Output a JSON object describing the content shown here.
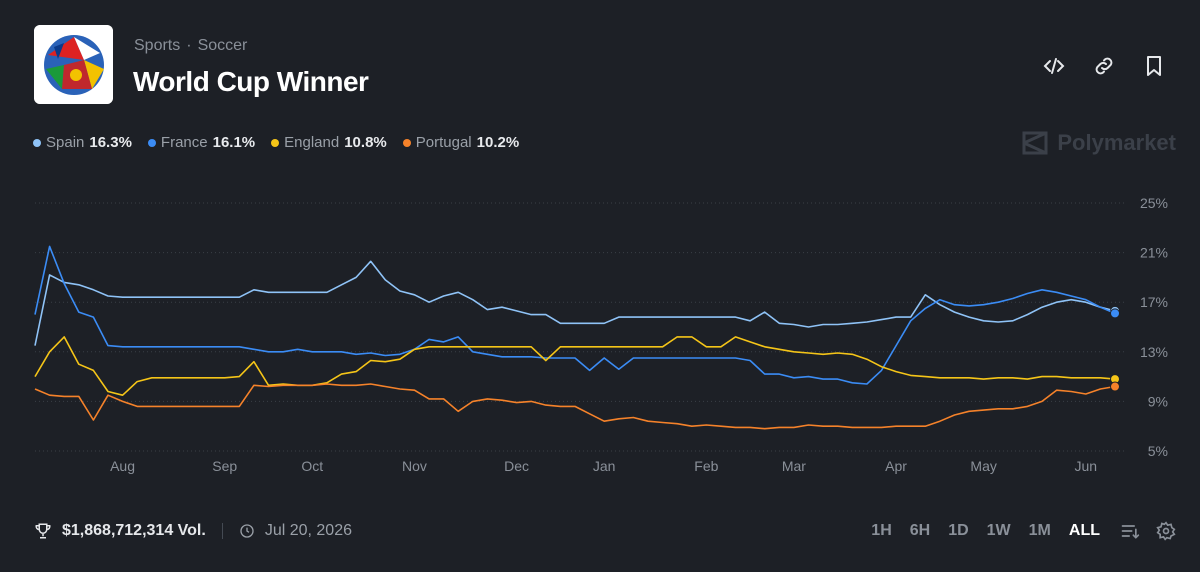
{
  "header": {
    "category": "Sports",
    "separator": "·",
    "subcategory": "Soccer",
    "title": "World Cup Winner",
    "brand": "Polymarket"
  },
  "chart_data": {
    "type": "line",
    "categories": [
      null,
      null,
      null,
      null,
      null,
      null,
      "Aug",
      null,
      null,
      null,
      null,
      null,
      null,
      "Sep",
      null,
      null,
      null,
      null,
      null,
      "Oct",
      null,
      null,
      null,
      null,
      null,
      null,
      "Nov",
      null,
      null,
      null,
      null,
      null,
      null,
      "Dec",
      null,
      null,
      null,
      null,
      null,
      "Jan",
      null,
      null,
      null,
      null,
      null,
      null,
      "Feb",
      null,
      null,
      null,
      null,
      null,
      "Mar",
      null,
      null,
      null,
      null,
      null,
      null,
      "Apr",
      null,
      null,
      null,
      null,
      null,
      "May",
      null,
      null,
      null,
      null,
      null,
      null,
      "Jun",
      null,
      null
    ],
    "ylim": [
      5,
      25
    ],
    "yticks": [
      {
        "value": 5,
        "label": "5%"
      },
      {
        "value": 9,
        "label": "9%"
      },
      {
        "value": 13,
        "label": "13%"
      },
      {
        "value": 17,
        "label": "17%"
      },
      {
        "value": 21,
        "label": "21%"
      },
      {
        "value": 25,
        "label": "25%"
      }
    ],
    "grid": true,
    "series": [
      {
        "name": "Spain",
        "color": "#8fc3f7",
        "current": {
          "value": 16.3,
          "label": "16.3%"
        },
        "values": [
          13.5,
          19.2,
          18.6,
          18.4,
          18.0,
          17.5,
          17.4,
          17.4,
          17.4,
          17.4,
          17.4,
          17.4,
          17.4,
          17.4,
          17.4,
          18.0,
          17.8,
          17.8,
          17.8,
          17.8,
          17.8,
          18.4,
          19.0,
          20.3,
          18.8,
          17.9,
          17.6,
          17.0,
          17.5,
          17.8,
          17.2,
          16.4,
          16.6,
          16.3,
          16.0,
          16.0,
          15.3,
          15.3,
          15.3,
          15.3,
          15.8,
          15.8,
          15.8,
          15.8,
          15.8,
          15.8,
          15.8,
          15.8,
          15.8,
          15.5,
          16.2,
          15.3,
          15.2,
          15.0,
          15.2,
          15.2,
          15.3,
          15.4,
          15.6,
          15.8,
          15.8,
          17.6,
          16.8,
          16.2,
          15.8,
          15.5,
          15.4,
          15.5,
          16.0,
          16.6,
          17.0,
          17.2,
          17.0,
          16.6,
          16.3
        ]
      },
      {
        "name": "France",
        "color": "#3b8cf5",
        "current": {
          "value": 16.1,
          "label": "16.1%"
        },
        "values": [
          16.0,
          21.5,
          18.5,
          16.2,
          15.8,
          13.5,
          13.4,
          13.4,
          13.4,
          13.4,
          13.4,
          13.4,
          13.4,
          13.4,
          13.4,
          13.2,
          13.0,
          13.0,
          13.2,
          13.0,
          13.0,
          13.0,
          12.8,
          12.9,
          12.7,
          12.8,
          13.2,
          14.0,
          13.8,
          14.2,
          13.0,
          12.8,
          12.6,
          12.6,
          12.6,
          12.5,
          12.5,
          12.5,
          11.5,
          12.5,
          11.6,
          12.5,
          12.5,
          12.5,
          12.5,
          12.5,
          12.5,
          12.5,
          12.5,
          12.3,
          11.2,
          11.2,
          10.9,
          11.0,
          10.8,
          10.8,
          10.5,
          10.4,
          11.5,
          13.5,
          15.5,
          16.5,
          17.2,
          16.8,
          16.7,
          16.8,
          17.0,
          17.3,
          17.7,
          18.0,
          17.8,
          17.5,
          17.2,
          16.6,
          16.1
        ]
      },
      {
        "name": "England",
        "color": "#f5c518",
        "current": {
          "value": 10.8,
          "label": "10.8%"
        },
        "values": [
          11.0,
          13.0,
          14.2,
          12.0,
          11.5,
          9.8,
          9.5,
          10.6,
          10.9,
          10.9,
          10.9,
          10.9,
          10.9,
          10.9,
          11.0,
          12.2,
          10.3,
          10.4,
          10.3,
          10.3,
          10.5,
          11.2,
          11.4,
          12.3,
          12.2,
          12.4,
          13.2,
          13.4,
          13.4,
          13.4,
          13.4,
          13.4,
          13.4,
          13.4,
          13.4,
          12.3,
          13.4,
          13.4,
          13.4,
          13.4,
          13.4,
          13.4,
          13.4,
          13.4,
          14.2,
          14.2,
          13.4,
          13.4,
          14.2,
          13.8,
          13.4,
          13.2,
          13.0,
          12.9,
          12.8,
          12.9,
          12.8,
          12.4,
          11.8,
          11.4,
          11.1,
          11.0,
          10.9,
          10.9,
          10.9,
          10.8,
          10.9,
          10.9,
          10.8,
          11.0,
          11.0,
          10.9,
          10.9,
          10.9,
          10.8
        ]
      },
      {
        "name": "Portugal",
        "color": "#f5822a",
        "current": {
          "value": 10.2,
          "label": "10.2%"
        },
        "values": [
          10.0,
          9.5,
          9.4,
          9.4,
          7.5,
          9.5,
          9.0,
          8.6,
          8.6,
          8.6,
          8.6,
          8.6,
          8.6,
          8.6,
          8.6,
          10.3,
          10.2,
          10.3,
          10.3,
          10.3,
          10.4,
          10.3,
          10.3,
          10.4,
          10.2,
          10.0,
          9.9,
          9.2,
          9.2,
          8.2,
          9.0,
          9.2,
          9.1,
          8.9,
          9.0,
          8.7,
          8.6,
          8.6,
          8.0,
          7.4,
          7.6,
          7.7,
          7.4,
          7.3,
          7.2,
          7.0,
          7.1,
          7.0,
          6.9,
          6.9,
          6.8,
          6.9,
          6.9,
          7.1,
          7.0,
          7.0,
          6.9,
          6.9,
          6.9,
          7.0,
          7.0,
          7.0,
          7.4,
          7.9,
          8.2,
          8.3,
          8.4,
          8.4,
          8.6,
          9.0,
          9.9,
          9.8,
          9.6,
          10.0,
          10.2
        ]
      }
    ]
  },
  "footer": {
    "volume": "$1,868,712,314 Vol.",
    "date": "Jul 20, 2026",
    "ranges": [
      "1H",
      "6H",
      "1D",
      "1W",
      "1M",
      "ALL"
    ]
  }
}
